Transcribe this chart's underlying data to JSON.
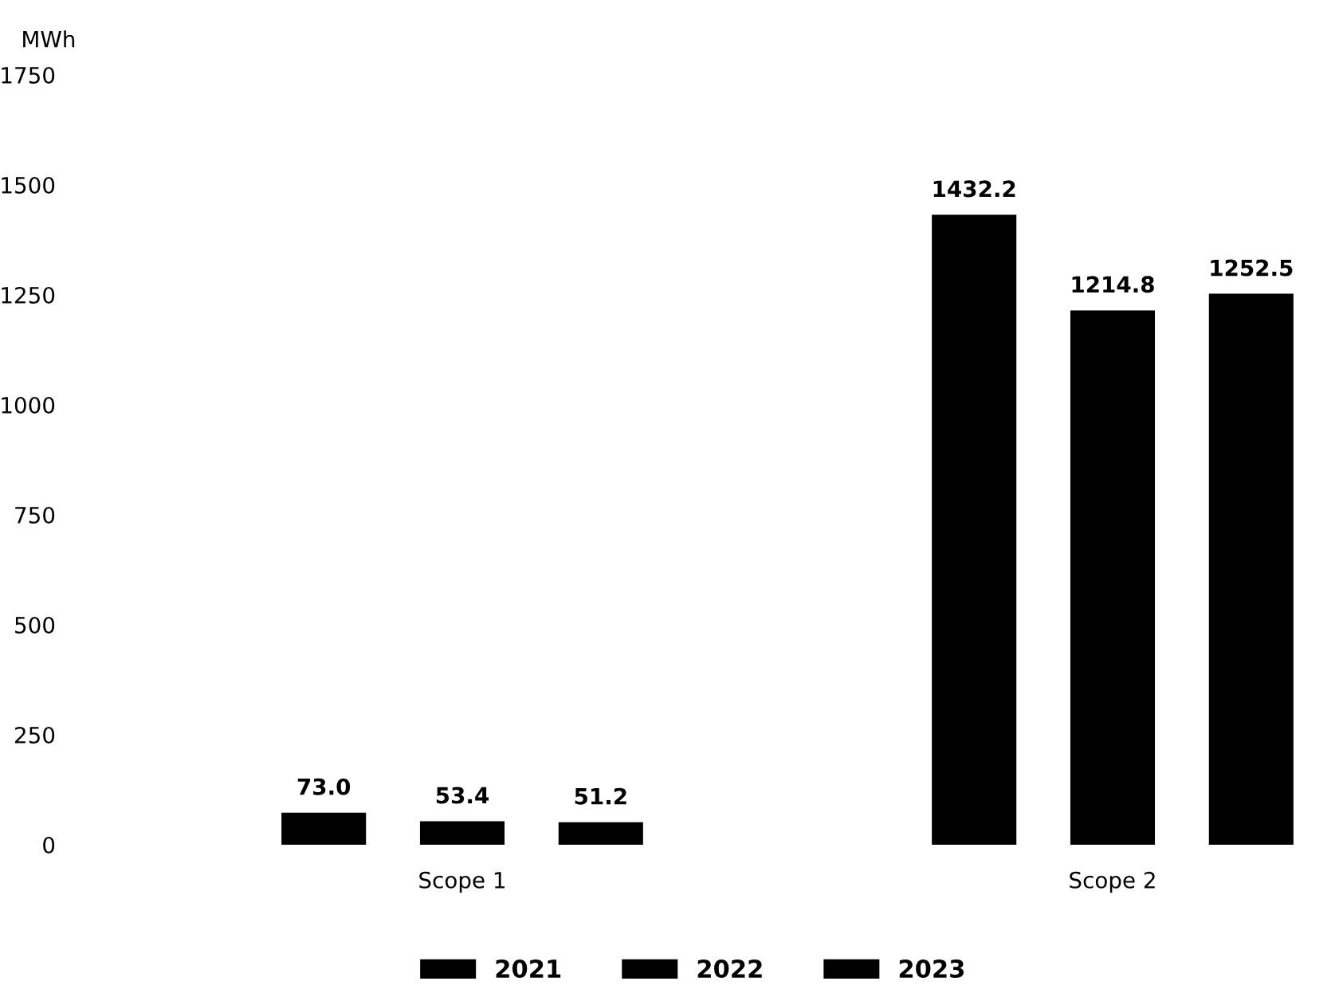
{
  "chart_data": {
    "type": "bar",
    "ylabel": "MWh",
    "categories": [
      "Scope 1",
      "Scope 2"
    ],
    "series": [
      {
        "name": "2021",
        "color": "#000000",
        "values": [
          73.0,
          1432.2
        ],
        "value_labels": [
          "73.0",
          "1432.2"
        ]
      },
      {
        "name": "2022",
        "color": "#000000",
        "values": [
          53.4,
          1214.8
        ],
        "value_labels": [
          "53.4",
          "1214.8"
        ]
      },
      {
        "name": "2023",
        "color": "#000000",
        "values": [
          51.2,
          1252.5
        ],
        "value_labels": [
          "51.2",
          "1252.5"
        ]
      }
    ],
    "ylim": [
      0,
      1750
    ],
    "yticks": [
      0,
      250,
      500,
      750,
      1000,
      1250,
      1500,
      1750
    ],
    "grid": false,
    "legend": "bottom"
  }
}
